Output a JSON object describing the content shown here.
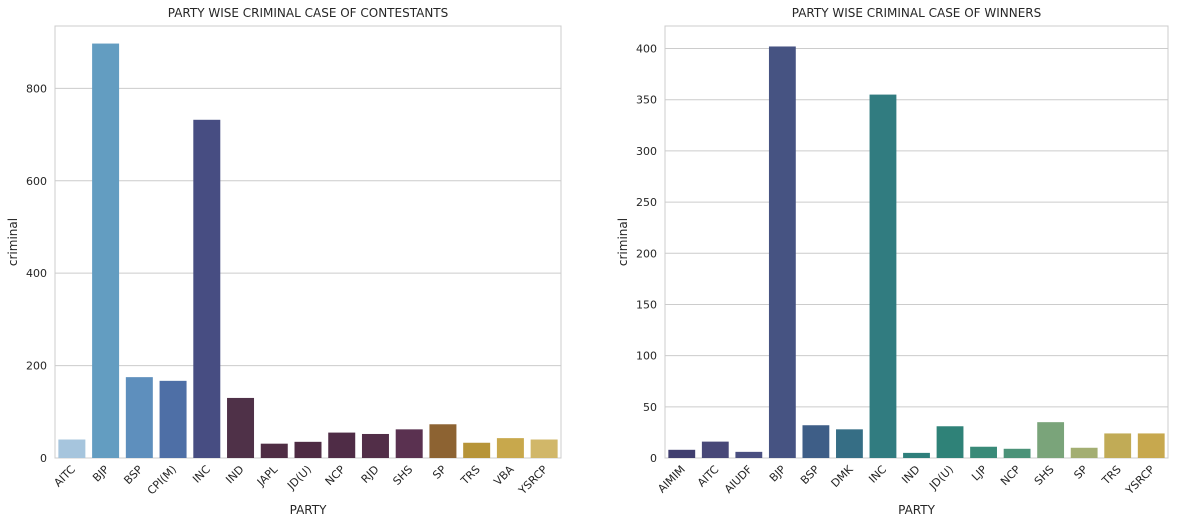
{
  "chart_data": [
    {
      "type": "bar",
      "title": "PARTY WISE CRIMINAL CASE OF CONTESTANTS",
      "xlabel": "PARTY",
      "ylabel": "criminal",
      "ylim": [
        0,
        935
      ],
      "yticks": [
        0,
        200,
        400,
        600,
        800
      ],
      "grid": true,
      "categories": [
        "AITC",
        "BJP",
        "BSP",
        "CPI(M)",
        "INC",
        "IND",
        "JAPL",
        "JD(U)",
        "NCP",
        "RJD",
        "SHS",
        "SP",
        "TRS",
        "VBA",
        "YSRCP"
      ],
      "values": [
        40,
        897,
        175,
        167,
        732,
        130,
        31,
        35,
        55,
        52,
        62,
        73,
        33,
        43,
        40
      ],
      "colors": [
        "#a6c5dd",
        "#639dc1",
        "#5e8fbd",
        "#4e6fa6",
        "#474d82",
        "#4f3148",
        "#4f2d44",
        "#4e2b43",
        "#4f2c46",
        "#522e48",
        "#5a3150",
        "#8d6332",
        "#b79438",
        "#c8a84c",
        "#d1b769"
      ]
    },
    {
      "type": "bar",
      "title": "PARTY WISE CRIMINAL CASE OF WINNERS",
      "xlabel": "PARTY",
      "ylabel": "criminal",
      "ylim": [
        0,
        422
      ],
      "yticks": [
        0,
        50,
        100,
        150,
        200,
        250,
        300,
        350,
        400
      ],
      "grid": true,
      "categories": [
        "AIMIM",
        "AITC",
        "AIUDF",
        "BJP",
        "BSP",
        "DMK",
        "INC",
        "IND",
        "JD(U)",
        "LJP",
        "NCP",
        "SHS",
        "SP",
        "TRS",
        "YSRCP"
      ],
      "values": [
        8,
        16,
        6,
        402,
        32,
        28,
        355,
        5,
        31,
        11,
        9,
        35,
        10,
        24,
        24
      ],
      "colors": [
        "#403e6f",
        "#484878",
        "#4a4f80",
        "#465382",
        "#3e5e87",
        "#366e85",
        "#317c80",
        "#2f7f7b",
        "#2f8278",
        "#398a78",
        "#4b9278",
        "#7aa47a",
        "#a3ae72",
        "#c1ab56",
        "#c7a84e"
      ]
    }
  ]
}
